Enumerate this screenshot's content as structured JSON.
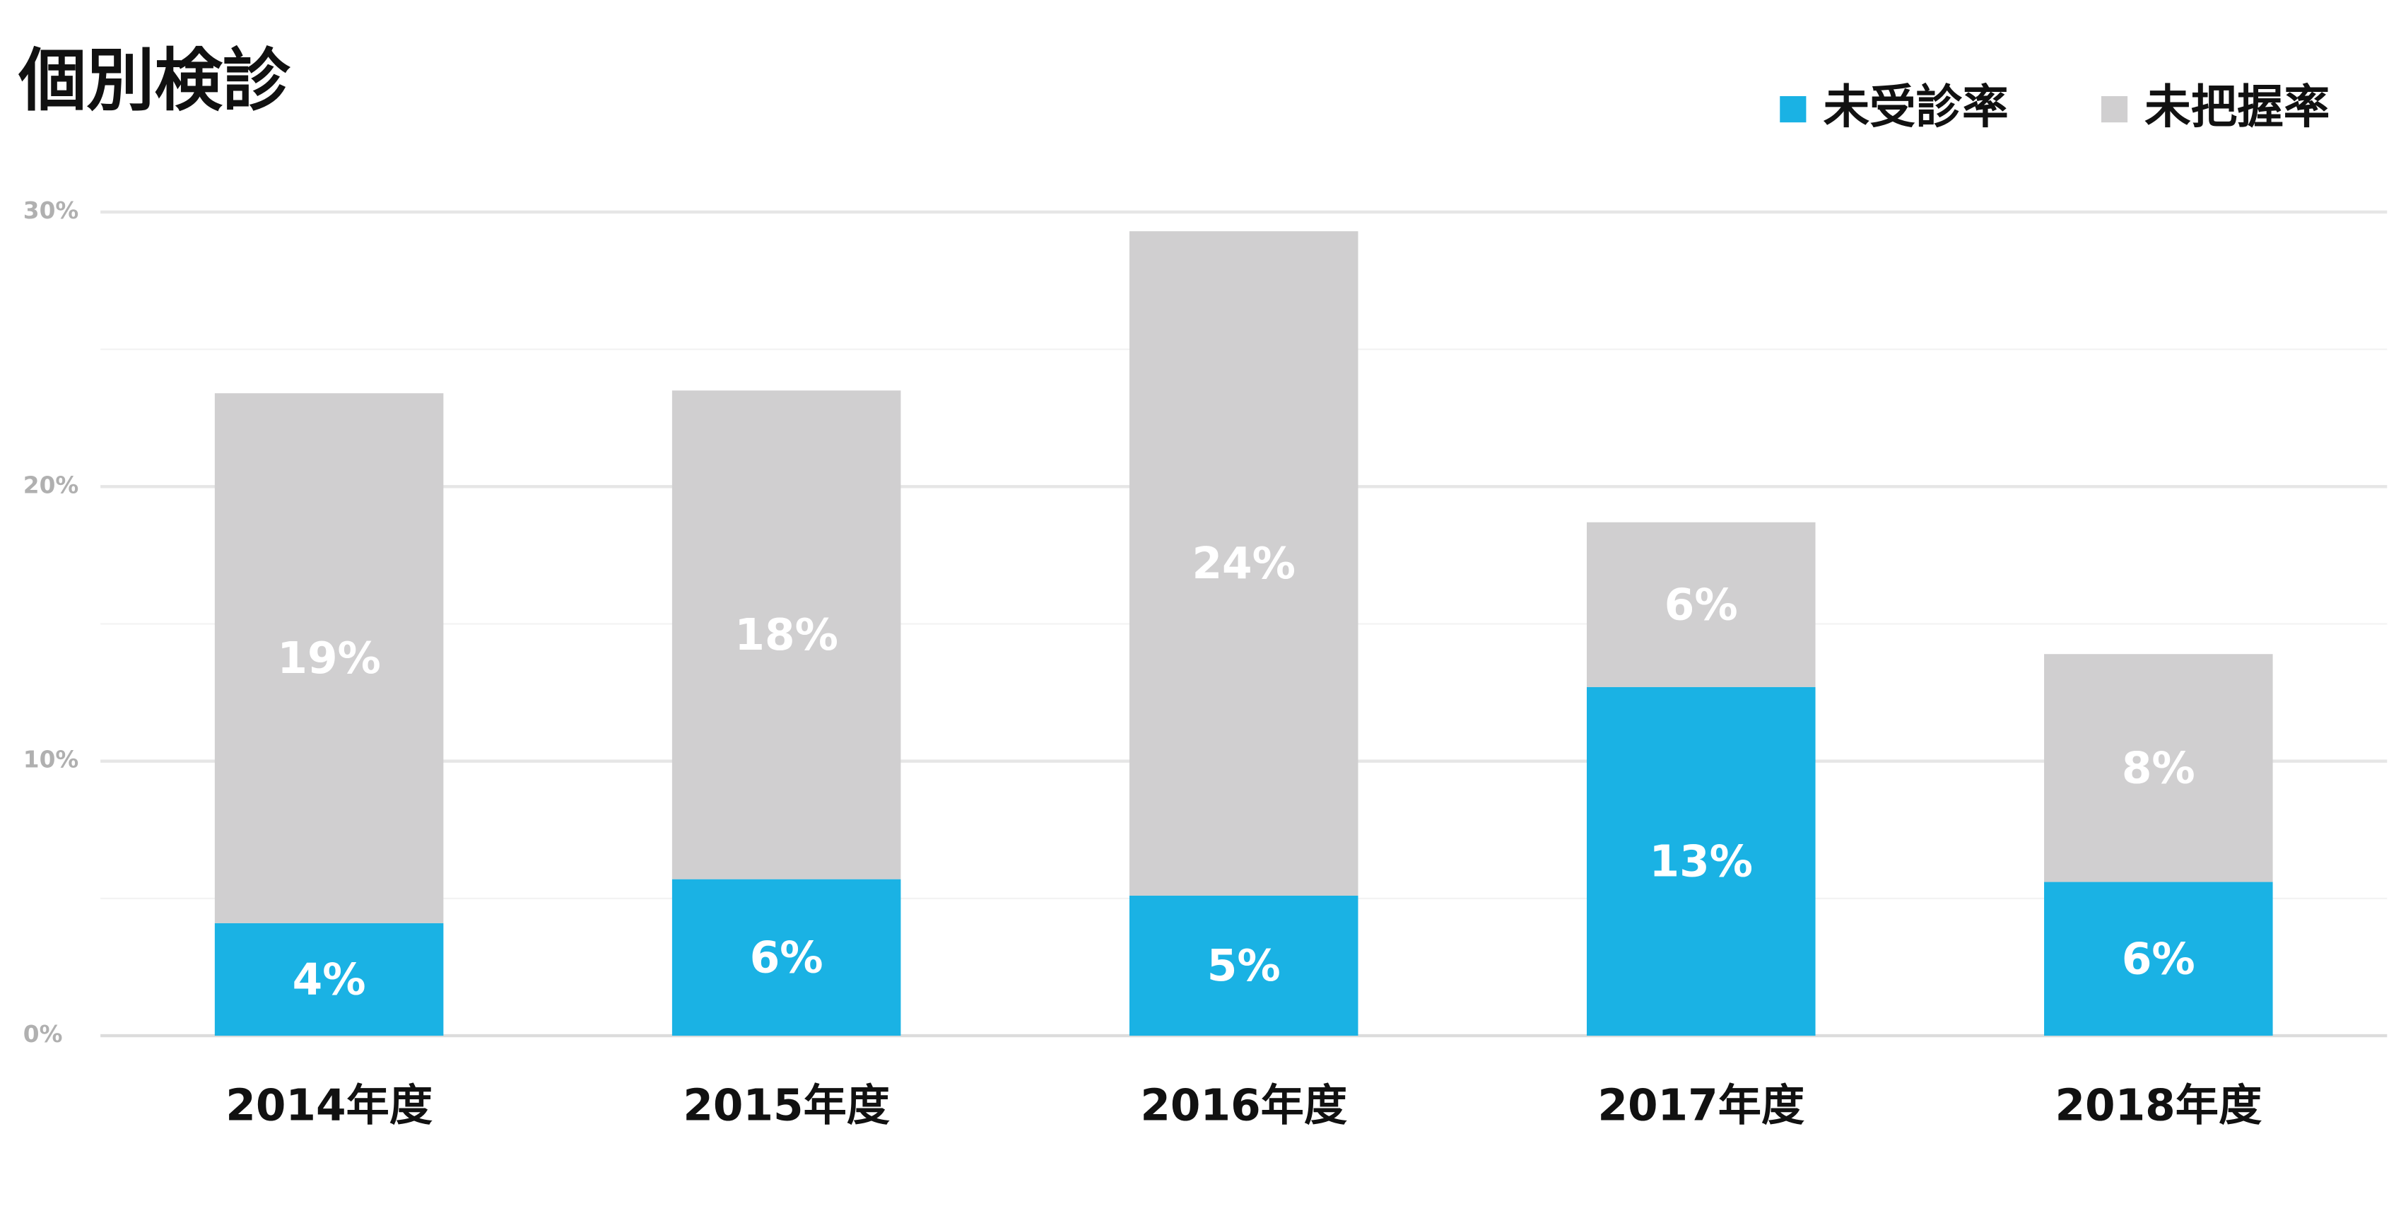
{
  "chart_data": {
    "type": "stacked_bar",
    "title": "個別検診",
    "categories": [
      "2014年度",
      "2015年度",
      "2016年度",
      "2017年度",
      "2018年度"
    ],
    "series": [
      {
        "name": "未受診率",
        "color": "#1ab2e4",
        "values": [
          4.1,
          5.7,
          5.1,
          12.7,
          5.6
        ],
        "value_labels": [
          "4%",
          "6%",
          "5%",
          "13%",
          "6%"
        ]
      },
      {
        "name": "未把握率",
        "color": "#d0cfd0",
        "values": [
          19.3,
          17.8,
          24.2,
          6.0,
          8.3
        ],
        "value_labels": [
          "19%",
          "18%",
          "24%",
          "6%",
          "8%"
        ]
      }
    ],
    "ylim": [
      0,
      30
    ],
    "yticks": [
      {
        "value": 0,
        "label": "0%"
      },
      {
        "value": 10,
        "label": "10%"
      },
      {
        "value": 20,
        "label": "20%"
      },
      {
        "value": 30,
        "label": "30%"
      }
    ],
    "minor_yticks": [
      5,
      15,
      25
    ],
    "grid": true,
    "legend": "top-right"
  }
}
